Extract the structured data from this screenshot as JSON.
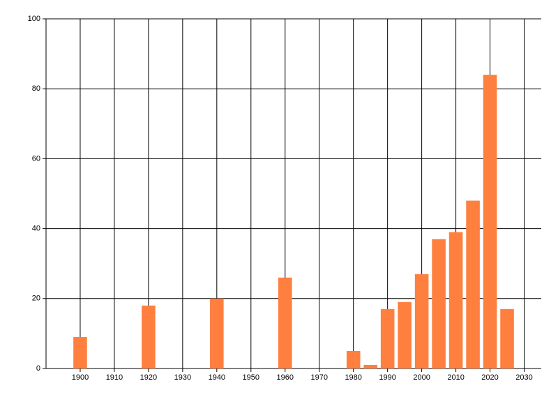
{
  "chart_data": {
    "type": "bar",
    "x": [
      1900,
      1920,
      1940,
      1960,
      1980,
      1985,
      1990,
      1995,
      2000,
      2005,
      2010,
      2015,
      2020,
      2025
    ],
    "values": [
      9,
      18,
      20,
      26,
      5,
      1,
      17,
      19,
      27,
      37,
      39,
      48,
      84,
      17
    ],
    "color": "#ff7f3f",
    "xlim": [
      1890,
      2035
    ],
    "xticks": [
      1900,
      1910,
      1920,
      1930,
      1940,
      1950,
      1960,
      1970,
      1980,
      1990,
      2000,
      2010,
      2020,
      2030
    ],
    "ylim": [
      0,
      100
    ],
    "yticks": [
      0,
      20,
      40,
      60,
      80,
      100
    ],
    "grid": true
  }
}
